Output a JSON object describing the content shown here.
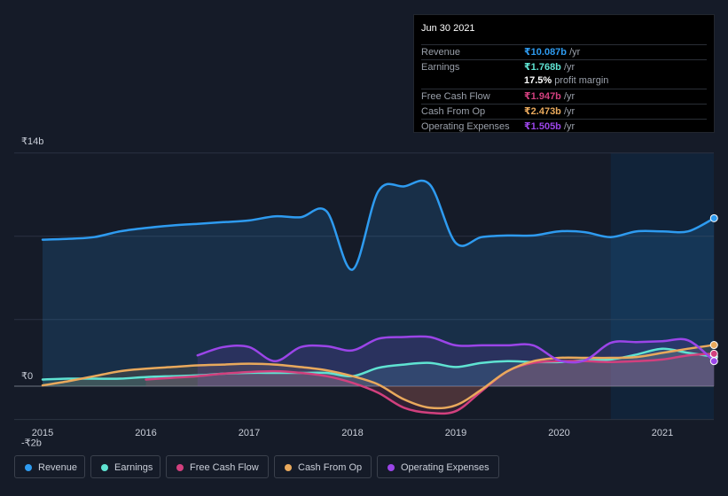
{
  "tooltip": {
    "date": "Jun 30 2021",
    "rows": [
      {
        "label": "Revenue",
        "value": "₹10.087b",
        "unit": " /yr",
        "color": "#2e9bf0"
      },
      {
        "label": "Earnings",
        "value": "₹1.768b",
        "unit": " /yr",
        "color": "#5fe3d2"
      },
      {
        "label": "",
        "value": "17.5%",
        "unit": " profit margin",
        "color": "#ffffff"
      },
      {
        "label": "Free Cash Flow",
        "value": "₹1.947b",
        "unit": " /yr",
        "color": "#d2407e"
      },
      {
        "label": "Cash From Op",
        "value": "₹2.473b",
        "unit": " /yr",
        "color": "#e9a95c"
      },
      {
        "label": "Operating Expenses",
        "value": "₹1.505b",
        "unit": " /yr",
        "color": "#9b45e8"
      }
    ]
  },
  "legend": [
    {
      "label": "Revenue",
      "color": "#2e9bf0"
    },
    {
      "label": "Earnings",
      "color": "#5fe3d2"
    },
    {
      "label": "Free Cash Flow",
      "color": "#d2407e"
    },
    {
      "label": "Cash From Op",
      "color": "#e9a95c"
    },
    {
      "label": "Operating Expenses",
      "color": "#9b45e8"
    }
  ],
  "chart_data": {
    "type": "area",
    "currency": "₹",
    "unit": "b",
    "y_tick_labels": [
      "₹14b",
      "₹0",
      "-₹2b"
    ],
    "x_tick_labels": [
      "2015",
      "2016",
      "2017",
      "2018",
      "2019",
      "2020",
      "2021"
    ],
    "ylim": [
      -2,
      14
    ],
    "xlim": [
      2014.72,
      2021.5
    ],
    "highlight_from": 2020.5,
    "series": [
      {
        "name": "Revenue",
        "color": "#2e9bf0",
        "fill": true,
        "start_x": 2015.0,
        "points": [
          [
            2015.0,
            8.8
          ],
          [
            2015.25,
            8.85
          ],
          [
            2015.5,
            8.95
          ],
          [
            2015.75,
            9.3
          ],
          [
            2016.0,
            9.5
          ],
          [
            2016.25,
            9.65
          ],
          [
            2016.5,
            9.75
          ],
          [
            2016.75,
            9.85
          ],
          [
            2017.0,
            9.95
          ],
          [
            2017.25,
            10.2
          ],
          [
            2017.5,
            10.15
          ],
          [
            2017.75,
            10.5
          ],
          [
            2018.0,
            7.0
          ],
          [
            2018.25,
            11.7
          ],
          [
            2018.5,
            12.0
          ],
          [
            2018.75,
            12.1
          ],
          [
            2019.0,
            8.6
          ],
          [
            2019.25,
            8.95
          ],
          [
            2019.5,
            9.05
          ],
          [
            2019.75,
            9.05
          ],
          [
            2020.0,
            9.3
          ],
          [
            2020.25,
            9.25
          ],
          [
            2020.5,
            8.95
          ],
          [
            2020.75,
            9.3
          ],
          [
            2021.0,
            9.3
          ],
          [
            2021.25,
            9.3
          ],
          [
            2021.5,
            10.087
          ]
        ]
      },
      {
        "name": "Earnings",
        "color": "#5fe3d2",
        "fill": true,
        "start_x": 2015.0,
        "points": [
          [
            2015.0,
            0.4
          ],
          [
            2015.25,
            0.45
          ],
          [
            2015.5,
            0.45
          ],
          [
            2015.75,
            0.45
          ],
          [
            2016.0,
            0.55
          ],
          [
            2016.25,
            0.6
          ],
          [
            2016.5,
            0.65
          ],
          [
            2016.75,
            0.75
          ],
          [
            2017.0,
            0.8
          ],
          [
            2017.25,
            0.8
          ],
          [
            2017.5,
            0.8
          ],
          [
            2017.75,
            0.8
          ],
          [
            2018.0,
            0.6
          ],
          [
            2018.25,
            1.1
          ],
          [
            2018.5,
            1.3
          ],
          [
            2018.75,
            1.4
          ],
          [
            2019.0,
            1.15
          ],
          [
            2019.25,
            1.4
          ],
          [
            2019.5,
            1.5
          ],
          [
            2019.75,
            1.45
          ],
          [
            2020.0,
            1.45
          ],
          [
            2020.25,
            1.55
          ],
          [
            2020.5,
            1.6
          ],
          [
            2020.75,
            1.9
          ],
          [
            2021.0,
            2.25
          ],
          [
            2021.25,
            2.0
          ],
          [
            2021.5,
            1.768
          ]
        ]
      },
      {
        "name": "Free Cash Flow",
        "color": "#d2407e",
        "fill": true,
        "start_x": 2016.0,
        "points": [
          [
            2016.0,
            0.4
          ],
          [
            2016.25,
            0.5
          ],
          [
            2016.5,
            0.6
          ],
          [
            2016.75,
            0.75
          ],
          [
            2017.0,
            0.85
          ],
          [
            2017.25,
            0.9
          ],
          [
            2017.5,
            0.8
          ],
          [
            2017.75,
            0.6
          ],
          [
            2018.0,
            0.2
          ],
          [
            2018.25,
            -0.4
          ],
          [
            2018.5,
            -1.3
          ],
          [
            2018.75,
            -1.6
          ],
          [
            2019.0,
            -1.5
          ],
          [
            2019.25,
            -0.3
          ],
          [
            2019.5,
            0.9
          ],
          [
            2019.75,
            1.4
          ],
          [
            2020.0,
            1.5
          ],
          [
            2020.25,
            1.5
          ],
          [
            2020.5,
            1.45
          ],
          [
            2020.75,
            1.5
          ],
          [
            2021.0,
            1.6
          ],
          [
            2021.25,
            1.85
          ],
          [
            2021.5,
            1.947
          ]
        ]
      },
      {
        "name": "Cash From Op",
        "color": "#e9a95c",
        "fill": true,
        "start_x": 2015.0,
        "points": [
          [
            2015.0,
            0.05
          ],
          [
            2015.25,
            0.3
          ],
          [
            2015.5,
            0.6
          ],
          [
            2015.75,
            0.9
          ],
          [
            2016.0,
            1.05
          ],
          [
            2016.25,
            1.15
          ],
          [
            2016.5,
            1.25
          ],
          [
            2016.75,
            1.3
          ],
          [
            2017.0,
            1.35
          ],
          [
            2017.25,
            1.3
          ],
          [
            2017.5,
            1.15
          ],
          [
            2017.75,
            0.95
          ],
          [
            2018.0,
            0.6
          ],
          [
            2018.25,
            0.1
          ],
          [
            2018.5,
            -0.8
          ],
          [
            2018.75,
            -1.3
          ],
          [
            2019.0,
            -1.15
          ],
          [
            2019.25,
            -0.2
          ],
          [
            2019.5,
            0.9
          ],
          [
            2019.75,
            1.5
          ],
          [
            2020.0,
            1.7
          ],
          [
            2020.25,
            1.7
          ],
          [
            2020.5,
            1.7
          ],
          [
            2020.75,
            1.75
          ],
          [
            2021.0,
            2.0
          ],
          [
            2021.25,
            2.25
          ],
          [
            2021.5,
            2.473
          ]
        ]
      },
      {
        "name": "Operating Expenses",
        "color": "#9b45e8",
        "fill": true,
        "start_x": 2016.5,
        "points": [
          [
            2016.5,
            1.85
          ],
          [
            2016.75,
            2.35
          ],
          [
            2017.0,
            2.35
          ],
          [
            2017.25,
            1.5
          ],
          [
            2017.5,
            2.35
          ],
          [
            2017.75,
            2.4
          ],
          [
            2018.0,
            2.15
          ],
          [
            2018.25,
            2.85
          ],
          [
            2018.5,
            2.95
          ],
          [
            2018.75,
            2.95
          ],
          [
            2019.0,
            2.45
          ],
          [
            2019.25,
            2.45
          ],
          [
            2019.5,
            2.45
          ],
          [
            2019.75,
            2.45
          ],
          [
            2020.0,
            1.55
          ],
          [
            2020.25,
            1.55
          ],
          [
            2020.5,
            2.6
          ],
          [
            2020.75,
            2.65
          ],
          [
            2021.0,
            2.7
          ],
          [
            2021.25,
            2.75
          ],
          [
            2021.5,
            1.505
          ]
        ]
      }
    ]
  }
}
